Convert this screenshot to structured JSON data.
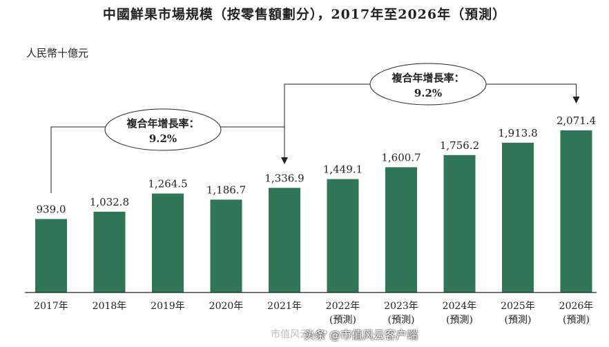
{
  "chart_data": {
    "type": "bar",
    "title": "中國鮮果市場規模（按零售額劃分），2017年至2026年（預測）",
    "ylabel": "人民幣十億元",
    "categories": [
      "2017年",
      "2018年",
      "2019年",
      "2020年",
      "2021年",
      "2022年",
      "2023年",
      "2024年",
      "2025年",
      "2026年"
    ],
    "forecast_labels": [
      "",
      "",
      "",
      "",
      "",
      "(預測)",
      "(預測)",
      "(預測)",
      "(預測)",
      "(預測)"
    ],
    "values": [
      939.0,
      1032.8,
      1264.5,
      1186.7,
      1336.9,
      1449.1,
      1600.7,
      1756.2,
      1913.8,
      2071.4
    ],
    "value_labels": [
      "939.0",
      "1,032.8",
      "1,264.5",
      "1,186.7",
      "1,336.9",
      "1,449.1",
      "1,600.7",
      "1,756.2",
      "1,913.8",
      "2,071.4"
    ],
    "ylim": [
      0,
      2071.4
    ],
    "grid": false,
    "bar_color": "#2e7656",
    "annotations": [
      {
        "label": "複合年增長率：",
        "value": "9.2%",
        "from_index": 0,
        "to_index": 4
      },
      {
        "label": "複合年增長率：",
        "value": "9.2%",
        "from_index": 4,
        "to_index": 9
      }
    ]
  },
  "watermarks": {
    "left_text": "市值风云APP",
    "right_text": "头条 @市值风云客户端"
  }
}
